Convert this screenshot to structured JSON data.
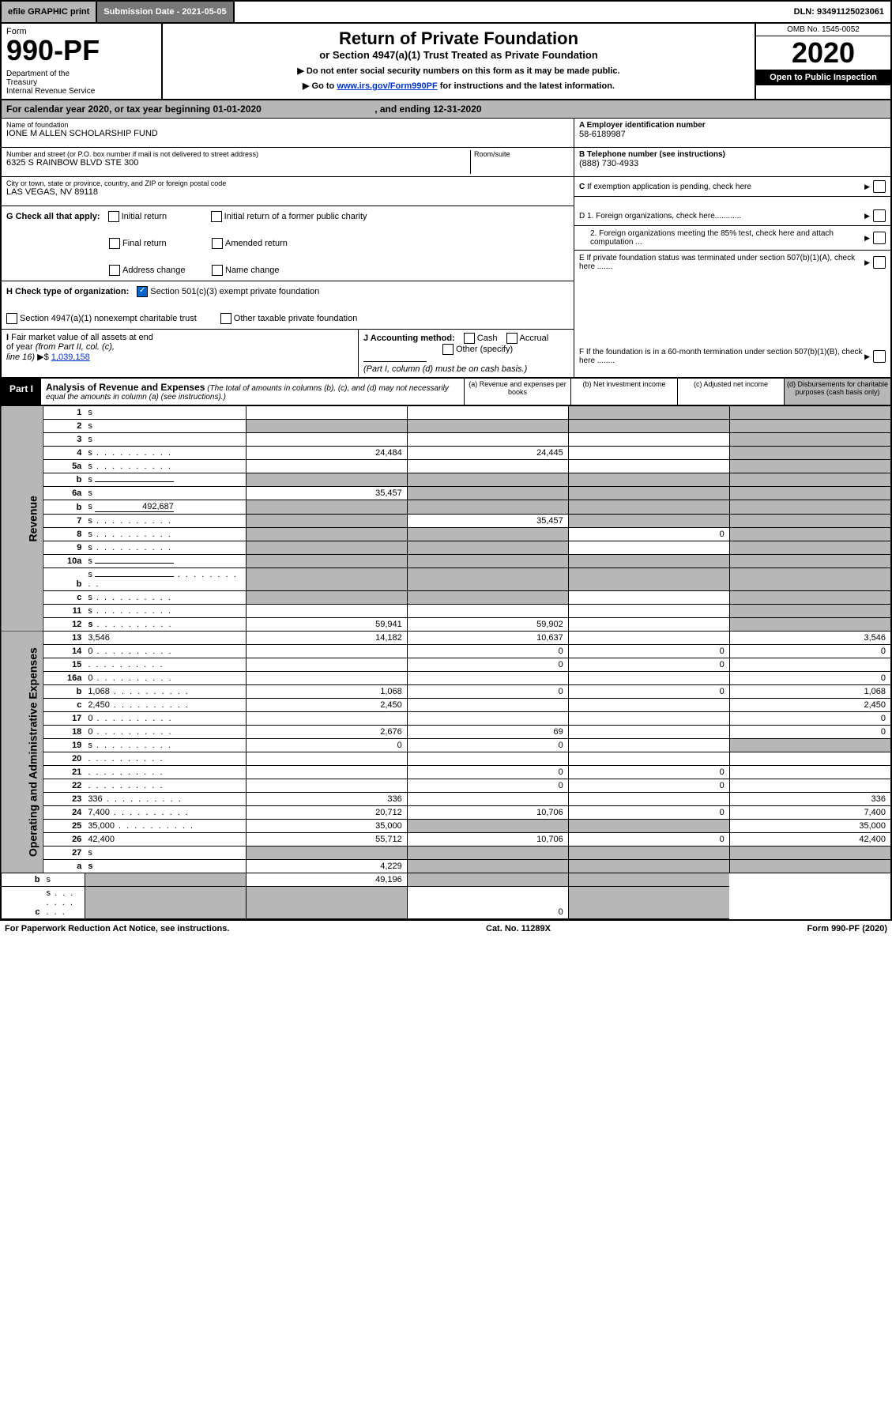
{
  "topbar": {
    "efile": "efile GRAPHIC print",
    "subdate_label": "Submission Date - 2021-05-05",
    "dln": "DLN: 93491125023061"
  },
  "header": {
    "form_label": "Form",
    "form_num": "990-PF",
    "dept": "Department of the Treasury\nInternal Revenue Service",
    "title": "Return of Private Foundation",
    "subtitle": "or Section 4947(a)(1) Trust Treated as Private Foundation",
    "note1": "▶ Do not enter social security numbers on this form as it may be made public.",
    "note2_prefix": "▶ Go to ",
    "note2_link": "www.irs.gov/Form990PF",
    "note2_suffix": " for instructions and the latest information.",
    "omb": "OMB No. 1545-0052",
    "year": "2020",
    "open": "Open to Public Inspection"
  },
  "calendar": {
    "text_prefix": "For calendar year 2020, or tax year beginning ",
    "begin": "01-01-2020",
    "mid": ", and ending ",
    "end": "12-31-2020"
  },
  "info": {
    "name_label": "Name of foundation",
    "name": "IONE M ALLEN SCHOLARSHIP FUND",
    "addr_label": "Number and street (or P.O. box number if mail is not delivered to street address)",
    "addr": "6325 S RAINBOW BLVD STE 300",
    "room_label": "Room/suite",
    "city_label": "City or town, state or province, country, and ZIP or foreign postal code",
    "city": "LAS VEGAS, NV  89118",
    "ein_label": "A Employer identification number",
    "ein": "58-6189987",
    "phone_label": "B Telephone number (see instructions)",
    "phone": "(888) 730-4933",
    "c_label": "C If exemption application is pending, check here",
    "d1": "D 1. Foreign organizations, check here............",
    "d2": "2. Foreign organizations meeting the 85% test, check here and attach computation ...",
    "e": "E  If private foundation status was terminated under section 507(b)(1)(A), check here .......",
    "f": "F  If the foundation is in a 60-month termination under section 507(b)(1)(B), check here ........"
  },
  "g": {
    "label": "G Check all that apply:",
    "opts": [
      "Initial return",
      "Final return",
      "Address change",
      "Initial return of a former public charity",
      "Amended return",
      "Name change"
    ]
  },
  "h": {
    "label": "H Check type of organization:",
    "opt1": "Section 501(c)(3) exempt private foundation",
    "opt2": "Section 4947(a)(1) nonexempt charitable trust",
    "opt3": "Other taxable private foundation"
  },
  "i": {
    "label": "I Fair market value of all assets at end of year (from Part II, col. (c), line 16)",
    "val": "1,039,158"
  },
  "j": {
    "label": "J Accounting method:",
    "opts": [
      "Cash",
      "Accrual",
      "Other (specify)"
    ],
    "note": "(Part I, column (d) must be on cash basis.)"
  },
  "part1": {
    "label": "Part I",
    "title": "Analysis of Revenue and Expenses",
    "note": "(The total of amounts in columns (b), (c), and (d) may not necessarily equal the amounts in column (a) (see instructions).)",
    "cols": {
      "a": "(a)  Revenue and expenses per books",
      "b": "(b)  Net investment income",
      "c": "(c)  Adjusted net income",
      "d": "(d)  Disbursements for charitable purposes (cash basis only)"
    }
  },
  "sections": {
    "revenue": "Revenue",
    "expenses": "Operating and Administrative Expenses"
  },
  "rows": [
    {
      "n": "1",
      "d": "s",
      "a": "",
      "b": "",
      "c": "s"
    },
    {
      "n": "2",
      "d": "s",
      "a": "s",
      "b": "s",
      "c": "s",
      "bold_part": "not"
    },
    {
      "n": "3",
      "d": "s",
      "a": "",
      "b": "",
      "c": ""
    },
    {
      "n": "4",
      "d": "s",
      "a": "24,484",
      "b": "24,445",
      "c": "",
      "dots": true
    },
    {
      "n": "5a",
      "d": "s",
      "a": "",
      "b": "",
      "c": "",
      "dots": true
    },
    {
      "n": "b",
      "d": "s",
      "a": "s",
      "b": "s",
      "c": "s",
      "inline": ""
    },
    {
      "n": "6a",
      "d": "s",
      "a": "35,457",
      "b": "s",
      "c": "s"
    },
    {
      "n": "b",
      "d": "s",
      "a": "s",
      "b": "s",
      "c": "s",
      "inline": "492,687"
    },
    {
      "n": "7",
      "d": "s",
      "a": "s",
      "b": "35,457",
      "c": "s",
      "dots": true
    },
    {
      "n": "8",
      "d": "s",
      "a": "s",
      "b": "s",
      "c": "0",
      "dots": true
    },
    {
      "n": "9",
      "d": "s",
      "a": "s",
      "b": "s",
      "c": "",
      "dots": true
    },
    {
      "n": "10a",
      "d": "s",
      "a": "s",
      "b": "s",
      "c": "s",
      "inline": ""
    },
    {
      "n": "b",
      "d": "s",
      "a": "s",
      "b": "s",
      "c": "s",
      "inline": "",
      "dots": true
    },
    {
      "n": "c",
      "d": "s",
      "a": "s",
      "b": "s",
      "c": "",
      "dots": true
    },
    {
      "n": "11",
      "d": "s",
      "a": "",
      "b": "",
      "c": "",
      "dots": true
    },
    {
      "n": "12",
      "d": "s",
      "a": "59,941",
      "b": "59,902",
      "c": "",
      "bold": true,
      "bold_part": "Total.",
      "dots": true
    },
    {
      "n": "13",
      "d": "3,546",
      "a": "14,182",
      "b": "10,637",
      "c": "",
      "sec": "e"
    },
    {
      "n": "14",
      "d": "0",
      "a": "",
      "b": "0",
      "c": "0",
      "dots": true
    },
    {
      "n": "15",
      "d": "",
      "a": "",
      "b": "0",
      "c": "0",
      "dots": true
    },
    {
      "n": "16a",
      "d": "0",
      "a": "",
      "b": "",
      "c": "",
      "dots": true
    },
    {
      "n": "b",
      "d": "1,068",
      "a": "1,068",
      "b": "0",
      "c": "0",
      "dots": true
    },
    {
      "n": "c",
      "d": "2,450",
      "a": "2,450",
      "b": "",
      "c": "",
      "dots": true
    },
    {
      "n": "17",
      "d": "0",
      "a": "",
      "b": "",
      "c": "",
      "dots": true
    },
    {
      "n": "18",
      "d": "0",
      "a": "2,676",
      "b": "69",
      "c": "",
      "dots": true
    },
    {
      "n": "19",
      "d": "s",
      "a": "0",
      "b": "0",
      "c": "",
      "dots": true
    },
    {
      "n": "20",
      "d": "",
      "a": "",
      "b": "",
      "c": "",
      "dots": true
    },
    {
      "n": "21",
      "d": "",
      "a": "",
      "b": "0",
      "c": "0",
      "dots": true
    },
    {
      "n": "22",
      "d": "",
      "a": "",
      "b": "0",
      "c": "0",
      "dots": true
    },
    {
      "n": "23",
      "d": "336",
      "a": "336",
      "b": "",
      "c": "",
      "dots": true
    },
    {
      "n": "24",
      "d": "7,400",
      "a": "20,712",
      "b": "10,706",
      "c": "0",
      "bold_part": "Total operating and administrative expenses.",
      "dots": true
    },
    {
      "n": "25",
      "d": "35,000",
      "a": "35,000",
      "b": "s",
      "c": "s",
      "dots": true
    },
    {
      "n": "26",
      "d": "42,400",
      "a": "55,712",
      "b": "10,706",
      "c": "0",
      "bold_part": "Total expenses and disbursements."
    },
    {
      "n": "27",
      "d": "s",
      "a": "s",
      "b": "s",
      "c": "s",
      "sec": "last"
    },
    {
      "n": "a",
      "d": "s",
      "a": "4,229",
      "b": "s",
      "c": "s",
      "bold": true
    },
    {
      "n": "b",
      "d": "s",
      "a": "s",
      "b": "49,196",
      "c": "s",
      "bold_part": "Net investment income"
    },
    {
      "n": "c",
      "d": "s",
      "a": "s",
      "b": "s",
      "c": "0",
      "bold_part": "Adjusted net income",
      "dots": true
    }
  ],
  "footer": {
    "left": "For Paperwork Reduction Act Notice, see instructions.",
    "mid": "Cat. No. 11289X",
    "right": "Form 990-PF (2020)"
  }
}
